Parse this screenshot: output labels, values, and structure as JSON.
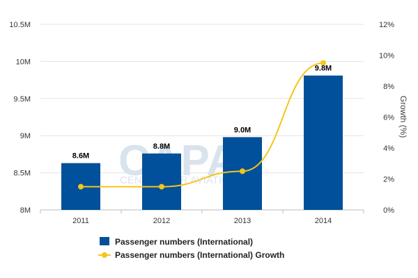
{
  "chart_data": {
    "type": "bar",
    "categories": [
      "2011",
      "2012",
      "2013",
      "2014"
    ],
    "series": [
      {
        "name": "Passenger numbers (International)",
        "type": "bar",
        "axis": "left",
        "values": [
          8.63,
          8.76,
          8.98,
          9.81
        ],
        "labels": [
          "8.6M",
          "8.8M",
          "9.0M",
          "9.8M"
        ],
        "color": "#00509b"
      },
      {
        "name": "Passenger numbers (International) Growth",
        "type": "line",
        "axis": "right",
        "values": [
          1.5,
          1.5,
          2.5,
          9.5
        ],
        "color": "#f5c518"
      }
    ],
    "y_left": {
      "ylim": [
        8,
        10.5
      ],
      "ticks": [
        8,
        8.5,
        9,
        9.5,
        10,
        10.5
      ],
      "tick_labels": [
        "8M",
        "8.5M",
        "9M",
        "9.5M",
        "10M",
        "10.5M"
      ]
    },
    "y_right": {
      "label": "Growth (%)",
      "ylim": [
        0,
        12
      ],
      "ticks": [
        0,
        2,
        4,
        6,
        8,
        10,
        12
      ],
      "tick_labels": [
        "0%",
        "2%",
        "4%",
        "6%",
        "8%",
        "10%",
        "12%"
      ]
    },
    "grid": true,
    "legend_position": "bottom"
  },
  "watermark": {
    "logo": "CAPA",
    "text": "CENTRE FOR AVIATION"
  }
}
